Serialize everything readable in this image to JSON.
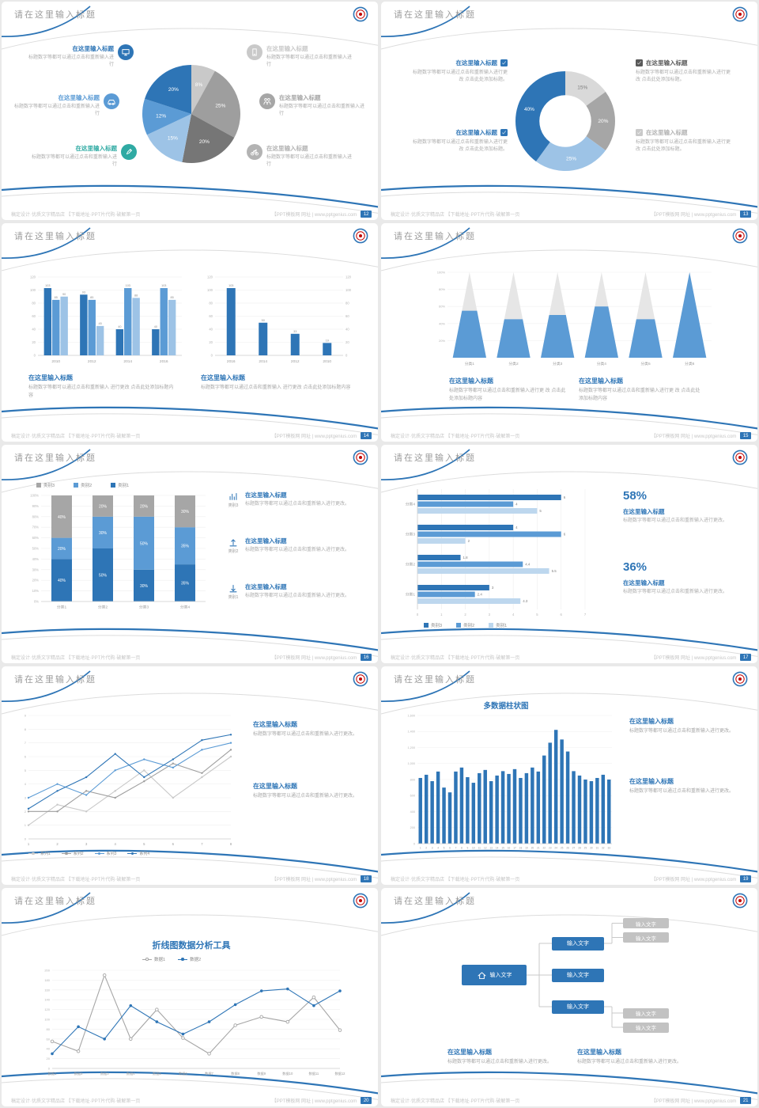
{
  "page": {
    "bg": "#e9e9e9",
    "slide_bg": "#ffffff",
    "accent": "#2e75b6"
  },
  "shared": {
    "slide_title": "请在这里输入标题",
    "footer_left": "稿定设计·优质文字精品店 【下载地址·PPT片代购·破解第一页",
    "footer_right": "【PPT模板网 网址 | www.pptgenius.com"
  },
  "slides": [
    {
      "page_number": "12",
      "chart_data": {
        "type": "pie",
        "labels": [
          "8%",
          "25%",
          "20%",
          "15%",
          "12%",
          "20%"
        ],
        "values": [
          8,
          25,
          20,
          15,
          12,
          20
        ],
        "colors": [
          "#c9c9c9",
          "#9e9e9e",
          "#767676",
          "#9dc3e6",
          "#5b9bd5",
          "#2e75b6"
        ]
      },
      "items_left": [
        {
          "icon": "monitor-icon",
          "color": "#2e75b6",
          "title": "在这里输入标题",
          "text": "标题数字等都可以通过点击和重新输入进行"
        },
        {
          "icon": "car-icon",
          "color": "#5b9bd5",
          "title": "在这里输入标题",
          "text": "标题数字等都可以通过点击和重新输入进行"
        },
        {
          "icon": "pen-icon",
          "color": "#2faaa3",
          "title": "在这里输入标题",
          "text": "标题数字等都可以通过点击和重新输入进行"
        }
      ],
      "items_right": [
        {
          "icon": "phone-icon",
          "color": "#c9c9c9",
          "title": "在这里输入标题",
          "text": "标题数字等都可以通过点击和重新输入进行"
        },
        {
          "icon": "people-icon",
          "color": "#a6a6a6",
          "title": "在这里输入标题",
          "text": "标题数字等都可以通过点击和重新输入进行"
        },
        {
          "icon": "bike-icon",
          "color": "#b3b3b3",
          "title": "在这里输入标题",
          "text": "标题数字等都可以通过点击和重新输入进行"
        }
      ]
    },
    {
      "page_number": "13",
      "chart_data": {
        "type": "donut",
        "labels": [
          "15%",
          "20%",
          "25%",
          "40%"
        ],
        "values": [
          15,
          20,
          25,
          40
        ],
        "colors": [
          "#d9d9d9",
          "#a6a6a6",
          "#9dc3e6",
          "#2e75b6"
        ],
        "label_colors": [
          "#7f7f7f",
          "#ffffff",
          "#ffffff",
          "#ffffff"
        ]
      },
      "items_left": [
        {
          "checkbox": "#2e75b6",
          "title_color": "#2e75b6",
          "title": "在这里输入标题",
          "text": "标题数字等都可以通过点击和重新输入进行更改 点击此处添加标题。"
        },
        {
          "checkbox": "#2e75b6",
          "title_color": "#2e75b6",
          "title": "在这里输入标题",
          "text": "标题数字等都可以通过点击和重新输入进行更改 点击此处添加标题。"
        }
      ],
      "items_right": [
        {
          "checkbox": "#595959",
          "title_color": "#595959",
          "title": "在这里输入标题",
          "text": "标题数字等都可以通过点击和重新输入进行更改 点击此处添加标题。"
        },
        {
          "checkbox": "#c9c9c9",
          "title_color": "#b3b3b3",
          "title": "在这里输入标题",
          "text": "标题数字等都可以通过点击和重新输入进行更改 点击此处添加标题。"
        }
      ]
    },
    {
      "page_number": "14",
      "chart_left": {
        "type": "grouped-bar",
        "categories": [
          "2010",
          "2012",
          "2014",
          "2016"
        ],
        "ylim": [
          0,
          120
        ],
        "yticks": [
          0,
          20,
          40,
          60,
          80,
          100,
          120
        ],
        "bar_labels": true,
        "series": [
          {
            "color": "#2e75b6",
            "values": [
              103,
              93,
              40,
              40
            ]
          },
          {
            "color": "#5b9bd5",
            "values": [
              85,
              85,
              103,
              103
            ]
          },
          {
            "color": "#9dc3e6",
            "values": [
              90,
              45,
              88,
              85
            ]
          }
        ]
      },
      "chart_right": {
        "type": "grouped-bar",
        "categories": [
          "2016",
          "2014",
          "2012",
          "2010"
        ],
        "ylim": [
          0,
          120
        ],
        "yticks": [
          0,
          20,
          40,
          60,
          80,
          100,
          120
        ],
        "bar_labels": true,
        "right_axis": true,
        "series": [
          {
            "color": "#2e75b6",
            "values": [
              103,
              50,
              33,
              19
            ]
          }
        ]
      },
      "blocks": [
        {
          "title": "在这里输入标题",
          "text": "标题数字等都可以通过点击和重新输入 进行更改 点击此处添加标题内容"
        },
        {
          "title": "在这里输入标题",
          "text": "标题数字等都可以通过点击和重新输入 进行更改 点击此处添加标题内容"
        }
      ]
    },
    {
      "page_number": "15",
      "chart_data": {
        "type": "pyramid",
        "categories": [
          "分类1",
          "分类2",
          "分类3",
          "分类4",
          "分类5",
          "分类6"
        ],
        "fill_percent": [
          55,
          45,
          50,
          60,
          45,
          100
        ],
        "yticks": [
          "20%",
          "40%",
          "60%",
          "80%",
          "100%"
        ],
        "fill_color": "#5b9bd5",
        "shell_color": "#e6e6e6"
      },
      "blocks": [
        {
          "title": "在这里输入标题",
          "text": "标题数字等都可以通过点击和重新输入进行更 改 点击此处添加标题内容"
        },
        {
          "title": "在这里输入标题",
          "text": "标题数字等都可以通过点击和重新输入进行更 改 点击此处添加标题内容"
        }
      ]
    },
    {
      "page_number": "16",
      "chart_data": {
        "type": "stacked-bar",
        "categories": [
          "分类1",
          "分类2",
          "分类3",
          "分类4"
        ],
        "yticks": [
          "0%",
          "10%",
          "20%",
          "30%",
          "40%",
          "50%",
          "60%",
          "70%",
          "80%",
          "90%",
          "100%"
        ],
        "series": [
          {
            "name": "类别1",
            "color": "#2e75b6",
            "values": [
              40,
              50,
              30,
              35
            ]
          },
          {
            "name": "类别2",
            "color": "#5b9bd5",
            "values": [
              20,
              30,
              50,
              35
            ]
          },
          {
            "name": "类别3",
            "color": "#a6a6a6",
            "values": [
              40,
              20,
              20,
              30
            ]
          }
        ],
        "legend": [
          {
            "label": "类别3",
            "color": "#a6a6a6"
          },
          {
            "label": "类别2",
            "color": "#5b9bd5"
          },
          {
            "label": "类别1",
            "color": "#2e75b6"
          }
        ]
      },
      "items": [
        {
          "icon": "bar-chart-icon",
          "icon_label": "类别3",
          "title": "在这里输入标题",
          "text": "标题数字等都可以通过点击和重新输入进行更改。"
        },
        {
          "icon": "upload-icon",
          "icon_label": "类别2",
          "title": "在这里输入标题",
          "text": "标题数字等都可以通过点击和重新输入进行更改。"
        },
        {
          "icon": "download-icon",
          "icon_label": "类别1",
          "title": "在这里输入标题",
          "text": "标题数字等都可以通过点击和重新输入进行更改。"
        }
      ]
    },
    {
      "page_number": "17",
      "chart_data": {
        "type": "hbar",
        "categories": [
          "分类1",
          "分类2",
          "分类3",
          "分类4"
        ],
        "xlim": [
          0,
          7
        ],
        "xticks": [
          0,
          1,
          2,
          3,
          4,
          5,
          6,
          7
        ],
        "series": [
          {
            "name": "类别3",
            "color": "#2e75b6",
            "values": [
              3,
              1.8,
              4,
              6
            ]
          },
          {
            "name": "类别2",
            "color": "#5b9bd5",
            "values": [
              2.4,
              4.4,
              6,
              4
            ]
          },
          {
            "name": "类别1",
            "color": "#bdd7ee",
            "values": [
              4.3,
              5.5,
              2,
              5
            ]
          }
        ],
        "legend": [
          {
            "label": "类别3",
            "color": "#2e75b6"
          },
          {
            "label": "类别2",
            "color": "#5b9bd5"
          },
          {
            "label": "类别1",
            "color": "#bdd7ee"
          }
        ]
      },
      "stats": [
        {
          "value": "58%",
          "title": "在这里输入标题",
          "text": "标题数字等都可以通过点击和重新输入进行更改。"
        },
        {
          "value": "36%",
          "title": "在这里输入标题",
          "text": "标题数字等都可以通过点击和重新输入进行更改。"
        }
      ]
    },
    {
      "page_number": "18",
      "chart_data": {
        "type": "line",
        "x_labels": [
          "1",
          "2",
          "3",
          "4",
          "5",
          "6",
          "7",
          "8"
        ],
        "ylim": [
          0,
          9
        ],
        "yticks": [
          0,
          1,
          2,
          3,
          4,
          5,
          6,
          7,
          8,
          9
        ],
        "series": [
          {
            "name": "系列1",
            "color": "#c9c9c9",
            "values": [
              1,
              2.5,
              2,
              3.5,
              5,
              3,
              4.5,
              6
            ]
          },
          {
            "name": "系列2",
            "color": "#9e9e9e",
            "values": [
              2,
              2,
              3.5,
              3,
              4.2,
              5.5,
              4.8,
              6.5
            ]
          },
          {
            "name": "系列3",
            "color": "#5b9bd5",
            "values": [
              3,
              4,
              3.2,
              5,
              5.8,
              5.2,
              6.5,
              7
            ]
          },
          {
            "name": "系列4",
            "color": "#2e75b6",
            "values": [
              2.2,
              3.5,
              4.5,
              6.2,
              4.5,
              5.8,
              7.2,
              7.6
            ]
          }
        ]
      },
      "blocks": [
        {
          "title": "在这里输入标题",
          "text": "标题数字等都可以通过点击和重新输入进行更改。"
        },
        {
          "title": "在这里输入标题",
          "text": "标题数字等都可以通过点击和重新输入进行更改。"
        }
      ]
    },
    {
      "page_number": "19",
      "chart_title": "多数据柱状图",
      "chart_data": {
        "type": "column",
        "color": "#2e75b6",
        "ylim": [
          0,
          1600
        ],
        "yticks": [
          "0",
          "200",
          "400",
          "600",
          "800",
          "1,000",
          "1,200",
          "1,400",
          "1,600"
        ],
        "x_labels": [
          "1",
          "2",
          "3",
          "4",
          "5",
          "6",
          "7",
          "8",
          "9",
          "10",
          "11",
          "12",
          "13",
          "14",
          "15",
          "16",
          "17",
          "18",
          "19",
          "20",
          "21",
          "22",
          "23",
          "24",
          "25",
          "26",
          "27",
          "28",
          "29",
          "30",
          "31",
          "32",
          "33"
        ],
        "values": [
          820,
          860,
          780,
          900,
          700,
          640,
          900,
          950,
          830,
          760,
          880,
          920,
          780,
          850,
          905,
          870,
          930,
          820,
          880,
          950,
          900,
          1100,
          1260,
          1420,
          1300,
          1150,
          905,
          850,
          800,
          780,
          820,
          860,
          800
        ]
      },
      "blocks": [
        {
          "title": "在这里输入标题",
          "text": "标题数字等都可以通过点击和重新输入进行更改。"
        },
        {
          "title": "在这里输入标题",
          "text": "标题数字等都可以通过点击和重新输入进行更改。"
        }
      ]
    },
    {
      "page_number": "20",
      "chart_title": "折线图数据分析工具",
      "chart_data": {
        "type": "line",
        "x_labels": [
          "数据1",
          "数据2",
          "数据3",
          "数据4",
          "数据5",
          "数据6",
          "数据7",
          "数据8",
          "数据9",
          "数据10",
          "数据11",
          "数据12"
        ],
        "ylim": [
          0,
          200
        ],
        "yticks": [
          0,
          20,
          40,
          60,
          80,
          100,
          120,
          140,
          160,
          180,
          200
        ],
        "series": [
          {
            "name": "数据1",
            "color": "#a6a6a6",
            "marker": "open",
            "values": [
              55,
              35,
              190,
              60,
              120,
              62,
              30,
              88,
              105,
              95,
              145,
              78
            ]
          },
          {
            "name": "数据2",
            "color": "#2e75b6",
            "marker": "filled",
            "values": [
              30,
              85,
              60,
              128,
              95,
              70,
              95,
              130,
              158,
              162,
              128,
              158
            ]
          }
        ]
      }
    },
    {
      "page_number": "21",
      "root": {
        "icon": "home-icon",
        "label": "输入文字"
      },
      "children": [
        {
          "label": "输入文字"
        },
        {
          "label": "输入文字"
        },
        {
          "label": "输入文字"
        }
      ],
      "gray_boxes": [
        {
          "label": "输入文字"
        },
        {
          "label": "输入文字"
        },
        {
          "label": "输入文字"
        },
        {
          "label": "输入文字"
        }
      ],
      "blocks": [
        {
          "title": "在这里输入标题",
          "text": "标题数字等都可以通过点击和重新输入进行更改。"
        },
        {
          "title": "在这里输入标题",
          "text": "标题数字等都可以通过点击和重新输入进行更改。"
        }
      ]
    }
  ]
}
